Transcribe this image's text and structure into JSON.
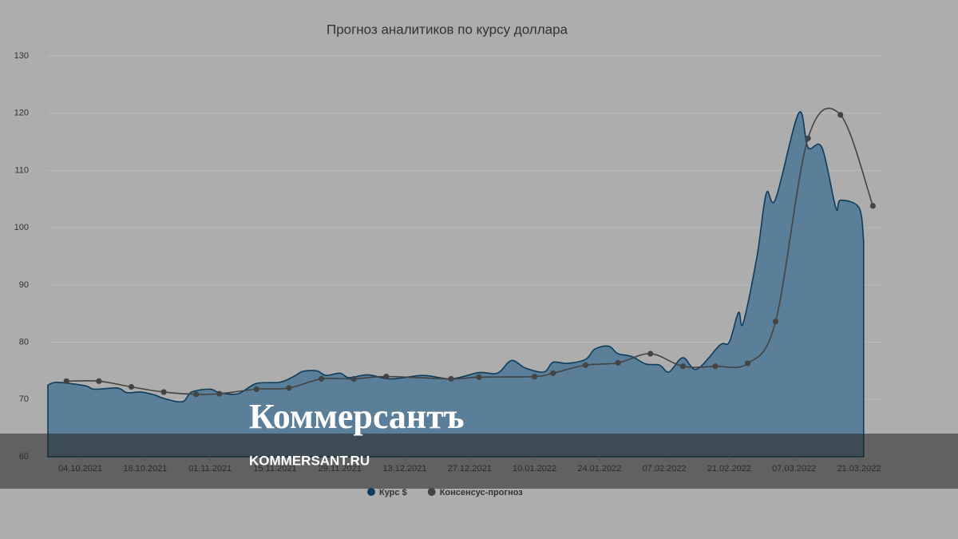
{
  "chart_data": {
    "type": "area-line",
    "title": "Прогноз аналитиков по курсу доллара",
    "xlim": [
      "2021-09-27",
      "2022-03-26"
    ],
    "xticks": [
      {
        "value": "2021-10-04",
        "label": "04.10.2021"
      },
      {
        "value": "2021-10-18",
        "label": "18.10.2021"
      },
      {
        "value": "2021-11-01",
        "label": "01.11.2021"
      },
      {
        "value": "2021-11-15",
        "label": "15.11.2021"
      },
      {
        "value": "2021-11-29",
        "label": "29.11.2021"
      },
      {
        "value": "2021-12-13",
        "label": "13.12.2021"
      },
      {
        "value": "2021-12-27",
        "label": "27.12.2021"
      },
      {
        "value": "2022-01-10",
        "label": "10.01.2022"
      },
      {
        "value": "2022-01-24",
        "label": "24.01.2022"
      },
      {
        "value": "2022-02-07",
        "label": "07.02.2022"
      },
      {
        "value": "2022-02-21",
        "label": "21.02.2022"
      },
      {
        "value": "2022-03-07",
        "label": "07.03.2022"
      },
      {
        "value": "2022-03-21",
        "label": "21.03.2022"
      }
    ],
    "ylim": [
      60,
      130
    ],
    "yticks": [
      60,
      70,
      80,
      90,
      100,
      110,
      120,
      130
    ],
    "grid": true,
    "series": [
      {
        "name": "Курс $",
        "color": "#0d3d5c",
        "fill": "#5b7f98",
        "markers": false,
        "x": [
          "2021-09-27",
          "2021-09-29",
          "2021-10-05",
          "2021-10-07",
          "2021-10-12",
          "2021-10-14",
          "2021-10-17",
          "2021-10-20",
          "2021-10-22",
          "2021-10-26",
          "2021-10-28",
          "2021-11-01",
          "2021-11-03",
          "2021-11-07",
          "2021-11-11",
          "2021-11-16",
          "2021-11-19",
          "2021-11-21",
          "2021-11-24",
          "2021-11-26",
          "2021-11-29",
          "2021-12-01",
          "2021-12-05",
          "2021-12-10",
          "2021-12-17",
          "2021-12-23",
          "2021-12-29",
          "2022-01-02",
          "2022-01-05",
          "2022-01-08",
          "2022-01-12",
          "2022-01-14",
          "2022-01-17",
          "2022-01-21",
          "2022-01-23",
          "2022-01-26",
          "2022-01-28",
          "2022-01-31",
          "2022-02-03",
          "2022-02-06",
          "2022-02-08",
          "2022-02-11",
          "2022-02-14",
          "2022-02-19",
          "2022-02-21",
          "2022-02-23",
          "2022-02-24",
          "2022-02-27",
          "2022-03-01",
          "2022-03-03",
          "2022-03-08",
          "2022-03-10",
          "2022-03-13",
          "2022-03-16",
          "2022-03-17",
          "2022-03-21",
          "2022-03-22"
        ],
        "values": [
          72.5,
          73,
          72.4,
          71.8,
          72,
          71.2,
          71.3,
          70.8,
          70.2,
          69.6,
          71.3,
          71.8,
          71.2,
          71,
          72.8,
          73,
          74,
          74.9,
          75,
          74.2,
          74.6,
          73.8,
          74.3,
          73.6,
          74.2,
          73.6,
          74.7,
          74.6,
          76.8,
          75.5,
          74.8,
          76.5,
          76.3,
          77,
          78.8,
          79.3,
          78,
          77.5,
          76.2,
          76,
          74.8,
          77.3,
          75.3,
          79.5,
          80,
          85.2,
          83.3,
          95,
          106,
          105,
          120,
          114,
          114,
          103.5,
          104.8,
          103.5,
          97.8
        ]
      },
      {
        "name": "Консенсус-прогноз",
        "color": "#444444",
        "markers": true,
        "x": [
          "2021-10-01",
          "2021-10-08",
          "2021-10-15",
          "2021-10-22",
          "2021-10-29",
          "2021-11-03",
          "2021-11-11",
          "2021-11-18",
          "2021-11-25",
          "2021-12-02",
          "2021-12-09",
          "2021-12-23",
          "2021-12-29",
          "2022-01-10",
          "2022-01-14",
          "2022-01-21",
          "2022-01-28",
          "2022-02-04",
          "2022-02-11",
          "2022-02-18",
          "2022-02-25",
          "2022-03-03",
          "2022-03-10",
          "2022-03-17",
          "2022-03-24"
        ],
        "values": [
          73.2,
          73.2,
          72.2,
          71.3,
          70.9,
          71,
          71.8,
          72,
          73.6,
          73.6,
          74,
          73.6,
          73.9,
          74,
          74.6,
          76,
          76.4,
          78,
          75.8,
          75.8,
          76.3,
          83.6,
          115.6,
          119.7,
          103.8
        ]
      }
    ]
  },
  "watermark": {
    "brand": "Коммерсантъ",
    "url": "KOMMERSANT.RU"
  }
}
